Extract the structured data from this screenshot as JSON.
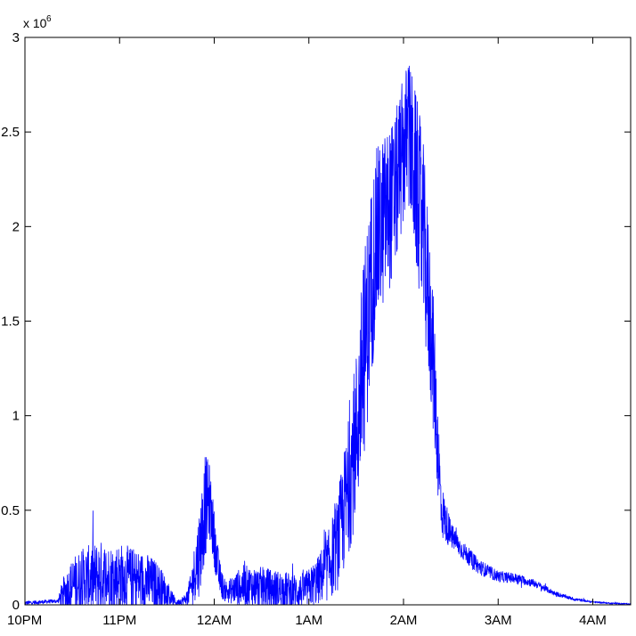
{
  "chart_data": {
    "type": "line",
    "title": "",
    "xlabel": "",
    "ylabel": "",
    "y_multiplier_base": "x 10",
    "y_multiplier_exponent": "6",
    "xlim_hours": [
      0,
      6.4
    ],
    "ylim": [
      0,
      3000000
    ],
    "grid": false,
    "line_color": "#0000ff",
    "x_ticks": [
      {
        "label": "10PM",
        "hour": 0
      },
      {
        "label": "11PM",
        "hour": 1
      },
      {
        "label": "12AM",
        "hour": 2
      },
      {
        "label": "1AM",
        "hour": 3
      },
      {
        "label": "2AM",
        "hour": 4
      },
      {
        "label": "3AM",
        "hour": 5
      },
      {
        "label": "4AM",
        "hour": 6
      }
    ],
    "y_ticks": [
      {
        "label": "0",
        "value": 0
      },
      {
        "label": "0.5",
        "value": 500000
      },
      {
        "label": "1",
        "value": 1000000
      },
      {
        "label": "1.5",
        "value": 1500000
      },
      {
        "label": "2",
        "value": 2000000
      },
      {
        "label": "2.5",
        "value": 2500000
      },
      {
        "label": "3",
        "value": 3000000
      }
    ],
    "series": [
      {
        "hours": [
          0.0,
          0.35,
          0.4,
          0.5,
          0.6,
          0.7,
          0.8,
          0.9,
          1.0,
          1.1,
          1.2,
          1.3,
          1.4,
          1.5,
          1.6,
          1.7,
          1.75,
          1.85,
          1.9,
          1.95,
          2.0,
          2.05,
          2.1,
          2.15,
          2.3,
          2.5,
          2.7,
          2.9,
          3.0,
          3.1,
          3.2,
          3.3,
          3.4,
          3.5,
          3.6,
          3.7,
          3.8,
          3.9,
          4.0,
          4.05,
          4.1,
          4.2,
          4.3,
          4.35,
          4.4,
          4.5,
          4.6,
          4.8,
          5.0,
          5.2,
          5.4,
          5.6,
          5.8,
          6.0,
          6.2,
          6.4
        ],
        "values": [
          10000,
          20000,
          60000,
          100000,
          130000,
          140000,
          150000,
          140000,
          150000,
          140000,
          130000,
          120000,
          100000,
          60000,
          10000,
          30000,
          80000,
          300000,
          520000,
          550000,
          350000,
          160000,
          80000,
          70000,
          100000,
          90000,
          80000,
          70000,
          90000,
          130000,
          200000,
          320000,
          560000,
          900000,
          1400000,
          1900000,
          2050000,
          2150000,
          2400000,
          2500000,
          2350000,
          2000000,
          1400000,
          950000,
          500000,
          370000,
          300000,
          200000,
          150000,
          140000,
          110000,
          60000,
          30000,
          15000,
          8000,
          5000
        ],
        "noise_amplitude": [
          10000,
          10000,
          80000,
          150000,
          170000,
          180000,
          190000,
          180000,
          180000,
          170000,
          160000,
          150000,
          130000,
          80000,
          10000,
          30000,
          80000,
          250000,
          280000,
          200000,
          150000,
          100000,
          60000,
          60000,
          110000,
          110000,
          100000,
          90000,
          100000,
          130000,
          180000,
          250000,
          350000,
          450000,
          550000,
          500000,
          450000,
          420000,
          400000,
          400000,
          450000,
          500000,
          400000,
          300000,
          150000,
          70000,
          50000,
          40000,
          30000,
          25000,
          20000,
          12000,
          8000,
          5000,
          4000,
          3000
        ]
      }
    ]
  }
}
